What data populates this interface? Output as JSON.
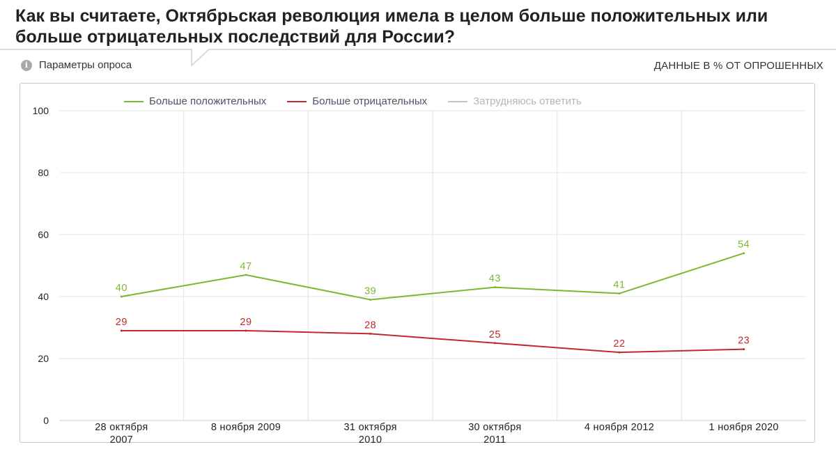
{
  "header": {
    "title": "Как вы считаете, Октябрьская революция имела в целом больше положительных или больше отрицательных последствий для России?",
    "params_label": "Параметры опроса",
    "info_icon": "info-icon",
    "units_label": "ДАННЫЕ В % ОТ ОПРОШЕННЫХ"
  },
  "colors": {
    "positive": "#7cb82f",
    "negative": "#c0282d",
    "hard": "#c4c4c4",
    "grid": "#e3e3e3",
    "axis_text": "#222222"
  },
  "legend": [
    {
      "label": "Больше положительных",
      "color": "#7cb82f",
      "enabled": true
    },
    {
      "label": "Больше отрицательных",
      "color": "#c0282d",
      "enabled": true
    },
    {
      "label": "Затрудняюсь ответить",
      "color": "#c4c4c4",
      "enabled": false
    }
  ],
  "chart_data": {
    "type": "line",
    "title": "Как вы считаете, Октябрьская революция имела в целом больше положительных или больше отрицательных последствий для России?",
    "categories": [
      [
        "28 октября",
        "2007"
      ],
      [
        "8 ноября 2009"
      ],
      [
        "31 октября",
        "2010"
      ],
      [
        "30 октября",
        "2011"
      ],
      [
        "4 ноября 2012"
      ],
      [
        "1 ноября 2020"
      ]
    ],
    "series": [
      {
        "name": "Больше положительных",
        "values": [
          40,
          47,
          39,
          43,
          41,
          54
        ],
        "color": "#7cb82f"
      },
      {
        "name": "Больше отрицательных",
        "values": [
          29,
          29,
          28,
          25,
          22,
          23
        ],
        "color": "#c0282d"
      }
    ],
    "ylim": [
      0,
      100
    ],
    "yticks": [
      0,
      20,
      40,
      60,
      80,
      100
    ],
    "grid": true,
    "legend_position": "top",
    "xlabel": "",
    "ylabel": ""
  }
}
